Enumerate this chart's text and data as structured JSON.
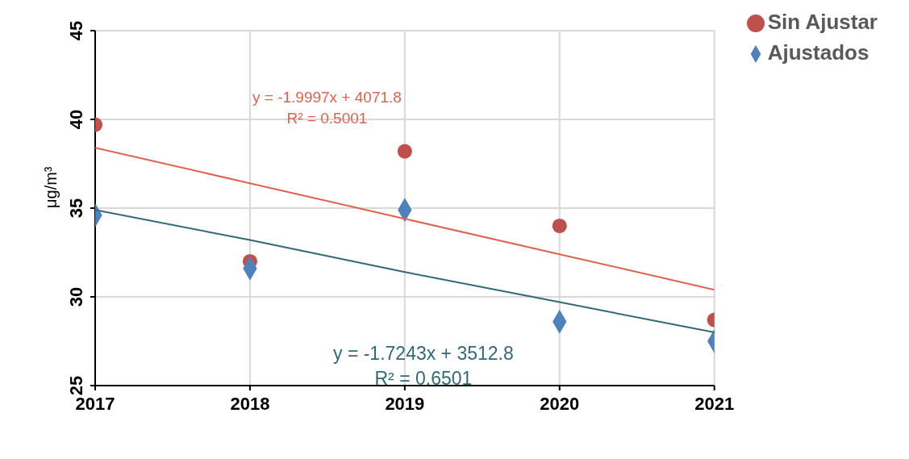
{
  "chart_data": {
    "type": "scatter",
    "ylabel": "μg/m³",
    "x": [
      2017,
      2018,
      2019,
      2020,
      2021
    ],
    "xlim": [
      2017,
      2021
    ],
    "xticks": [
      2017,
      2018,
      2019,
      2020,
      2021
    ],
    "ylim": [
      25,
      45
    ],
    "yticks": [
      25,
      30,
      35,
      40,
      45
    ],
    "grid": true,
    "legend": "top right",
    "series": [
      {
        "name": "Sin Ajustar",
        "color": "#c0504d",
        "marker": "circle",
        "values": [
          39.7,
          32.0,
          38.2,
          34.0,
          28.7
        ]
      },
      {
        "name": "Ajustados",
        "color": "#4f81bd",
        "marker": "diamond",
        "values": [
          34.6,
          31.6,
          34.9,
          28.6,
          27.5
        ]
      },
      {
        "type": "line",
        "color": "#e0624f",
        "marker": "none",
        "values": [
          38.4,
          36.4,
          34.4,
          32.4,
          30.4
        ]
      },
      {
        "type": "line",
        "color": "#31697a",
        "marker": "none",
        "values": [
          34.9,
          33.2,
          31.4,
          29.7,
          28.0
        ]
      }
    ],
    "annotations": [
      "y = -1.9997x + 4071.8\nR² = 0.5001",
      "y = -1.7243x + 3512.8\nR² = 0.6501"
    ]
  }
}
